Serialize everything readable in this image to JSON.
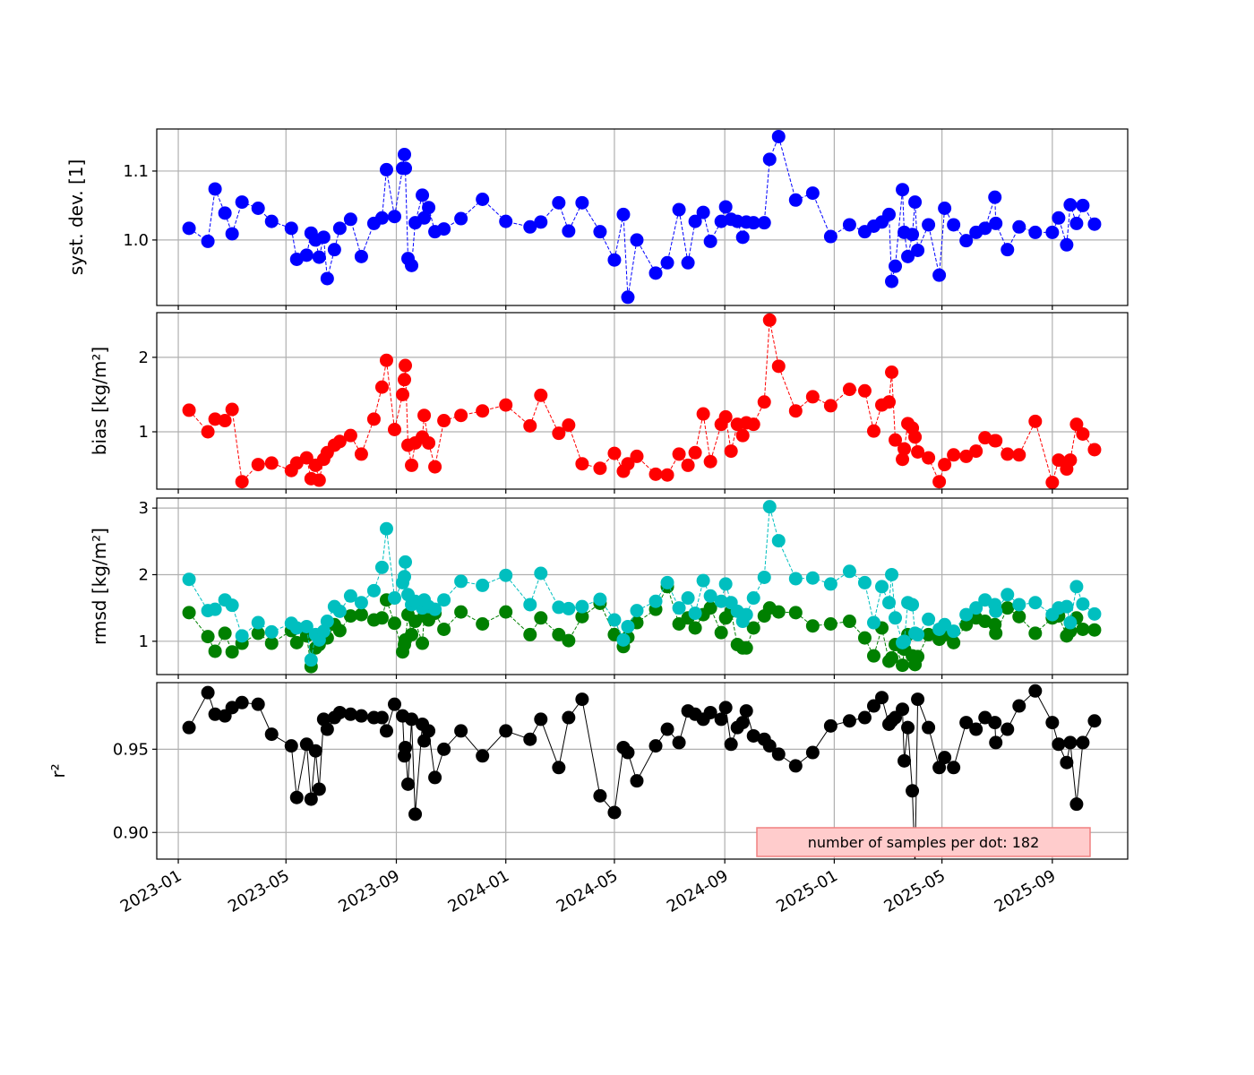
{
  "chart_data": {
    "type": "line",
    "x": [
      "2023-01-13",
      "2023-02-03",
      "2023-02-11",
      "2023-02-22",
      "2023-03-02",
      "2023-03-13",
      "2023-03-31",
      "2023-04-15",
      "2023-05-07",
      "2023-05-13",
      "2023-05-24",
      "2023-05-29",
      "2023-06-03",
      "2023-06-07",
      "2023-06-12",
      "2023-06-16",
      "2023-06-24",
      "2023-06-30",
      "2023-07-12",
      "2023-07-24",
      "2023-08-07",
      "2023-08-16",
      "2023-08-21",
      "2023-08-30",
      "2023-09-08",
      "2023-09-10",
      "2023-09-11",
      "2023-09-14",
      "2023-09-18",
      "2023-09-22",
      "2023-09-30",
      "2023-10-02",
      "2023-10-07",
      "2023-10-14",
      "2023-10-24",
      "2023-11-12",
      "2023-12-06",
      "2024-01-01",
      "2024-01-28",
      "2024-02-09",
      "2024-02-29",
      "2024-03-11",
      "2024-03-26",
      "2024-04-15",
      "2024-05-01",
      "2024-05-11",
      "2024-05-16",
      "2024-05-26",
      "2024-06-16",
      "2024-06-29",
      "2024-07-12",
      "2024-07-22",
      "2024-07-30",
      "2024-08-08",
      "2024-08-16",
      "2024-08-28",
      "2024-09-02",
      "2024-09-08",
      "2024-09-15",
      "2024-09-21",
      "2024-09-25",
      "2024-10-03",
      "2024-10-15",
      "2024-10-21",
      "2024-10-31",
      "2024-11-19",
      "2024-12-08",
      "2024-12-28",
      "2025-01-18",
      "2025-02-04",
      "2025-02-14",
      "2025-02-23",
      "2025-03-03",
      "2025-03-06",
      "2025-03-10",
      "2025-03-18",
      "2025-03-20",
      "2025-03-24",
      "2025-03-29",
      "2025-04-01",
      "2025-04-04",
      "2025-04-16",
      "2025-04-28",
      "2025-05-04",
      "2025-05-14",
      "2025-05-28",
      "2025-06-08",
      "2025-06-18",
      "2025-06-29",
      "2025-06-30",
      "2025-07-13",
      "2025-07-26",
      "2025-08-13",
      "2025-09-01",
      "2025-09-08",
      "2025-09-17",
      "2025-09-21",
      "2025-09-28",
      "2025-10-05",
      "2025-10-18"
    ],
    "x_ticks": [
      "2023-01",
      "2023-05",
      "2023-09",
      "2024-01",
      "2024-05",
      "2024-09",
      "2025-01",
      "2025-05",
      "2025-09"
    ],
    "xlim": [
      "2022-12-08",
      "2025-11-24"
    ],
    "grid": true,
    "panels": [
      {
        "ylabel": "syst. dev. [1]",
        "ylim": [
          0.905,
          1.161
        ],
        "yticks": [
          1.0,
          1.1
        ],
        "ytick_labels": [
          "1.0",
          "1.1"
        ],
        "series": [
          {
            "name": "syst. dev.",
            "color": "#0000ff",
            "dashed": true,
            "values": [
              1.017,
              0.998,
              1.074,
              1.039,
              1.009,
              1.055,
              1.046,
              1.027,
              1.017,
              0.972,
              0.978,
              1.01,
              1.0,
              0.975,
              1.004,
              0.944,
              0.986,
              1.017,
              1.03,
              0.976,
              1.024,
              1.032,
              1.102,
              1.034,
              1.104,
              1.124,
              1.104,
              0.973,
              0.963,
              1.025,
              1.065,
              1.032,
              1.047,
              1.012,
              1.016,
              1.031,
              1.059,
              1.027,
              1.019,
              1.026,
              1.054,
              1.013,
              1.054,
              1.012,
              0.971,
              1.037,
              0.917,
              1.0,
              0.952,
              0.967,
              1.044,
              0.967,
              1.027,
              1.04,
              0.998,
              1.027,
              1.048,
              1.03,
              1.027,
              1.004,
              1.026,
              1.025,
              1.025,
              1.117,
              1.15,
              1.058,
              1.068,
              1.005,
              1.022,
              1.012,
              1.02,
              1.026,
              1.037,
              0.94,
              0.962,
              1.073,
              1.011,
              0.976,
              1.008,
              1.055,
              0.985,
              1.022,
              0.949,
              1.046,
              1.022,
              0.999,
              1.011,
              1.017,
              1.062,
              1.024,
              0.986,
              1.019,
              1.011,
              1.011,
              1.032,
              0.993,
              1.051,
              1.024,
              1.05,
              1.023
            ]
          }
        ]
      },
      {
        "ylabel": "bias [kg/m²]",
        "ylim": [
          0.23,
          2.6
        ],
        "yticks": [
          1,
          2
        ],
        "ytick_labels": [
          "1",
          "2"
        ],
        "series": [
          {
            "name": "bias",
            "color": "#ff0000",
            "dashed": true,
            "values": [
              1.29,
              1.0,
              1.17,
              1.15,
              1.3,
              0.33,
              0.56,
              0.58,
              0.48,
              0.58,
              0.65,
              0.37,
              0.55,
              0.35,
              0.63,
              0.72,
              0.82,
              0.87,
              0.95,
              0.7,
              1.17,
              1.6,
              1.96,
              1.03,
              1.5,
              1.7,
              1.89,
              0.82,
              0.55,
              0.85,
              0.93,
              1.22,
              0.85,
              0.53,
              1.15,
              1.22,
              1.28,
              1.36,
              1.08,
              1.49,
              0.98,
              1.09,
              0.57,
              0.51,
              0.71,
              0.47,
              0.57,
              0.67,
              0.43,
              0.42,
              0.7,
              0.55,
              0.72,
              1.24,
              0.6,
              1.1,
              1.2,
              0.74,
              1.1,
              0.95,
              1.12,
              1.1,
              1.4,
              2.5,
              1.88,
              1.28,
              1.47,
              1.35,
              1.57,
              1.55,
              1.01,
              1.36,
              1.4,
              1.8,
              0.89,
              0.63,
              0.77,
              1.11,
              1.05,
              0.93,
              0.73,
              0.65,
              0.33,
              0.56,
              0.69,
              0.67,
              0.74,
              0.92,
              0.88,
              0.88,
              0.7,
              0.69,
              1.14,
              0.32,
              0.62,
              0.5,
              0.62,
              1.1,
              0.97,
              0.76
            ]
          }
        ]
      },
      {
        "ylabel": "rmsd [kg/m²]",
        "ylim": [
          0.5,
          3.15
        ],
        "yticks": [
          1,
          2,
          3
        ],
        "ytick_labels": [
          "1",
          "2",
          "3"
        ],
        "series": [
          {
            "name": "rmsd (green)",
            "color": "#008000",
            "dashed": true,
            "values": [
              1.43,
              1.07,
              0.85,
              1.12,
              0.84,
              0.97,
              1.12,
              0.97,
              1.16,
              0.98,
              1.08,
              0.62,
              0.9,
              0.95,
              1.05,
              1.05,
              1.25,
              1.16,
              1.38,
              1.4,
              1.32,
              1.35,
              1.62,
              1.27,
              0.84,
              0.95,
              1.02,
              1.4,
              1.1,
              1.3,
              0.97,
              1.38,
              1.32,
              1.42,
              1.18,
              1.44,
              1.26,
              1.44,
              1.1,
              1.35,
              1.1,
              1.01,
              1.37,
              1.57,
              1.1,
              0.92,
              1.06,
              1.28,
              1.48,
              1.82,
              1.26,
              1.35,
              1.2,
              1.4,
              1.5,
              1.13,
              1.35,
              1.45,
              0.95,
              0.9,
              0.9,
              1.2,
              1.38,
              1.5,
              1.44,
              1.43,
              1.23,
              1.26,
              1.3,
              1.05,
              0.78,
              1.2,
              0.7,
              0.75,
              0.95,
              0.64,
              0.88,
              1.1,
              0.78,
              0.65,
              0.77,
              1.1,
              1.03,
              1.1,
              0.98,
              1.25,
              1.35,
              1.3,
              1.25,
              1.12,
              1.5,
              1.37,
              1.12,
              1.35,
              1.38,
              1.08,
              1.15,
              1.35,
              1.18,
              1.17
            ]
          },
          {
            "name": "rmsd (cyan)",
            "color": "#00bfbf",
            "dashed": true,
            "values": [
              1.93,
              1.46,
              1.48,
              1.62,
              1.54,
              1.08,
              1.28,
              1.14,
              1.27,
              1.2,
              1.22,
              0.72,
              1.1,
              1.02,
              1.15,
              1.3,
              1.52,
              1.45,
              1.68,
              1.58,
              1.76,
              2.11,
              2.69,
              1.65,
              1.88,
              1.97,
              2.19,
              1.7,
              1.55,
              1.6,
              1.5,
              1.62,
              1.52,
              1.48,
              1.62,
              1.9,
              1.84,
              1.99,
              1.55,
              2.02,
              1.51,
              1.49,
              1.52,
              1.63,
              1.32,
              1.02,
              1.22,
              1.46,
              1.6,
              1.88,
              1.5,
              1.65,
              1.42,
              1.91,
              1.68,
              1.6,
              1.86,
              1.58,
              1.45,
              1.3,
              1.4,
              1.65,
              1.96,
              3.02,
              2.51,
              1.94,
              1.95,
              1.86,
              2.05,
              1.88,
              1.28,
              1.82,
              1.58,
              2.0,
              1.35,
              0.98,
              1.0,
              1.58,
              1.55,
              1.12,
              1.1,
              1.33,
              1.18,
              1.25,
              1.15,
              1.4,
              1.5,
              1.62,
              1.55,
              1.45,
              1.7,
              1.55,
              1.58,
              1.4,
              1.5,
              1.52,
              1.28,
              1.82,
              1.56,
              1.41
            ]
          }
        ]
      },
      {
        "ylabel": "r²",
        "ylim": [
          0.884,
          0.99
        ],
        "yticks": [
          0.9,
          0.95
        ],
        "ytick_labels": [
          "0.90",
          "0.95"
        ],
        "series": [
          {
            "name": "r²",
            "color": "#000000",
            "dashed": false,
            "values": [
              0.963,
              0.984,
              0.971,
              0.97,
              0.975,
              0.978,
              0.977,
              0.959,
              0.952,
              0.921,
              0.953,
              0.92,
              0.949,
              0.926,
              0.968,
              0.962,
              0.969,
              0.972,
              0.971,
              0.97,
              0.969,
              0.969,
              0.961,
              0.977,
              0.97,
              0.946,
              0.951,
              0.929,
              0.968,
              0.911,
              0.965,
              0.955,
              0.961,
              0.933,
              0.95,
              0.961,
              0.946,
              0.961,
              0.956,
              0.968,
              0.939,
              0.969,
              0.98,
              0.922,
              0.912,
              0.951,
              0.948,
              0.931,
              0.952,
              0.962,
              0.954,
              0.973,
              0.971,
              0.968,
              0.972,
              0.968,
              0.975,
              0.953,
              0.963,
              0.966,
              0.973,
              0.958,
              0.956,
              0.952,
              0.947,
              0.94,
              0.948,
              0.964,
              0.967,
              0.969,
              0.976,
              0.981,
              0.965,
              0.967,
              0.969,
              0.974,
              0.943,
              0.963,
              0.925,
              0.88,
              0.98,
              0.963,
              0.939,
              0.945,
              0.939,
              0.966,
              0.962,
              0.969,
              0.966,
              0.954,
              0.962,
              0.976,
              0.985,
              0.966,
              0.953,
              0.942,
              0.954,
              0.917,
              0.954,
              0.967
            ]
          }
        ],
        "annotation": "number of samples per dot: 182"
      }
    ]
  }
}
